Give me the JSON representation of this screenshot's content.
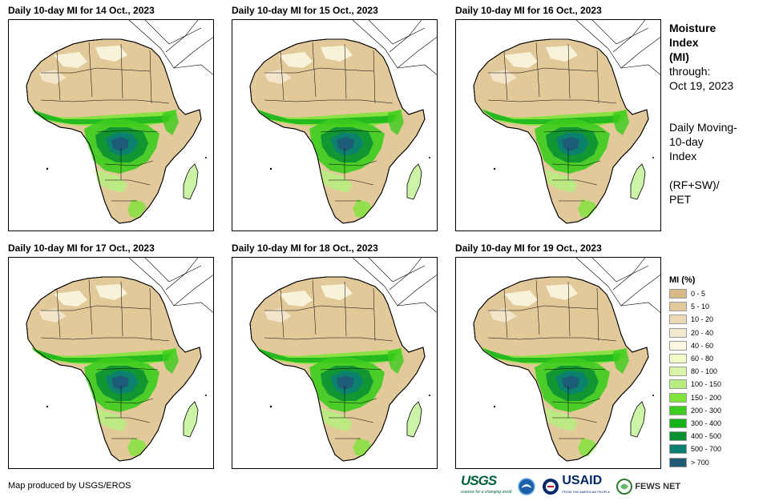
{
  "panels": [
    {
      "title": "Daily 10-day MI for 14 Oct., 2023"
    },
    {
      "title": "Daily 10-day MI for 15 Oct., 2023"
    },
    {
      "title": "Daily 10-day MI for 16 Oct., 2023"
    },
    {
      "title": "Daily 10-day MI for 17 Oct., 2023"
    },
    {
      "title": "Daily 10-day MI for 18 Oct., 2023"
    },
    {
      "title": "Daily 10-day MI for 19 Oct., 2023"
    }
  ],
  "side": {
    "title_line1": "Moisture",
    "title_line2": "Index",
    "title_line3": "(MI)",
    "through": "through:",
    "date": "Oct 19, 2023",
    "desc1": "Daily Moving-",
    "desc2": "10-day",
    "desc3": "Index",
    "formula1": "(RF+SW)/",
    "formula2": "PET"
  },
  "legend": {
    "title": "MI (%)",
    "items": [
      {
        "label": "0 - 5",
        "color": "#d8b987"
      },
      {
        "label": "5 - 10",
        "color": "#e2c99a"
      },
      {
        "label": "10 - 20",
        "color": "#ecd9b4"
      },
      {
        "label": "20 - 40",
        "color": "#f4e8cf"
      },
      {
        "label": "40 - 60",
        "color": "#fbf6e0"
      },
      {
        "label": "60 - 80",
        "color": "#f1fbc8"
      },
      {
        "label": "80 - 100",
        "color": "#d9f5a8"
      },
      {
        "label": "100 - 150",
        "color": "#b6ef80"
      },
      {
        "label": "150 - 200",
        "color": "#7fe33a"
      },
      {
        "label": "200 - 300",
        "color": "#3ccc1d"
      },
      {
        "label": "300 - 400",
        "color": "#14b31a"
      },
      {
        "label": "400 - 500",
        "color": "#0a9132"
      },
      {
        "label": "500 - 700",
        "color": "#0d7f72"
      },
      {
        "label": "> 700",
        "color": "#1f5a76"
      }
    ]
  },
  "credit": "Map produced by USGS/EROS",
  "logos": {
    "usgs": "USGS",
    "usgs_tagline": "science for a changing world",
    "usaid": "USAID",
    "usaid_tagline": "FROM THE AMERICAN PEOPLE",
    "fews": "FEWS NET"
  }
}
